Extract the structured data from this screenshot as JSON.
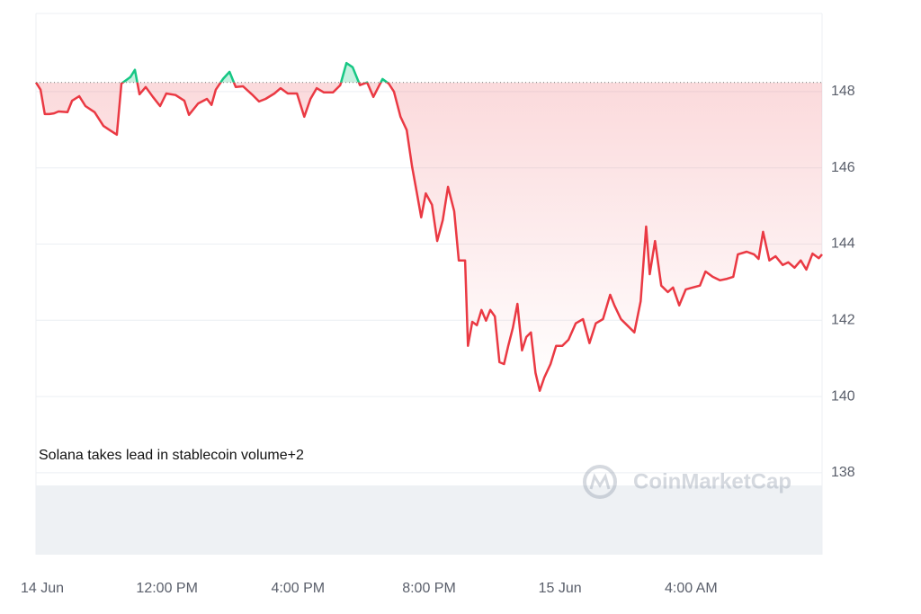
{
  "chart_data": {
    "type": "line",
    "annotation": "Solana takes lead in stablecoin volume+2",
    "watermark": "CoinMarketCap",
    "x": [
      0,
      0.14,
      0.27,
      0.41,
      0.55,
      0.69,
      0.96,
      1.1,
      1.32,
      1.51,
      1.79,
      2.06,
      2.25,
      2.47,
      2.61,
      2.88,
      3.02,
      3.16,
      3.35,
      3.57,
      3.79,
      3.98,
      4.26,
      4.53,
      4.67,
      4.95,
      5.22,
      5.36,
      5.49,
      5.71,
      5.91,
      6.1,
      6.32,
      6.59,
      6.81,
      7.01,
      7.28,
      7.47,
      7.69,
      7.97,
      8.19,
      8.38,
      8.57,
      8.79,
      9.07,
      9.29,
      9.48,
      9.67,
      9.89,
      10.11,
      10.3,
      10.58,
      10.77,
      10.93,
      11.13,
      11.32,
      11.48,
      11.62,
      11.76,
      11.9,
      12.09,
      12.25,
      12.42,
      12.58,
      12.77,
      12.91,
      13.1,
      13.19,
      13.32,
      13.46,
      13.6,
      13.74,
      13.87,
      14.01,
      14.15,
      14.29,
      14.42,
      14.56,
      14.7,
      14.84,
      14.97,
      15.11,
      15.25,
      15.38,
      15.52,
      15.71,
      15.88,
      16.07,
      16.26,
      16.48,
      16.7,
      16.9,
      17.09,
      17.31,
      17.53,
      17.66,
      17.86,
      18.05,
      18.27,
      18.46,
      18.63,
      18.74,
      18.9,
      19.09,
      19.29,
      19.45,
      19.64,
      19.84,
      20.05,
      20.27,
      20.44,
      20.66,
      20.88,
      21.1,
      21.29,
      21.43,
      21.7,
      21.92,
      22.06,
      22.2,
      22.39,
      22.58,
      22.8,
      22.97,
      23.16,
      23.35,
      23.52,
      23.71,
      23.9,
      24
    ],
    "values": [
      148.24,
      148.05,
      147.41,
      147.41,
      147.43,
      147.48,
      147.46,
      147.76,
      147.88,
      147.62,
      147.46,
      147.1,
      146.99,
      146.87,
      148.21,
      148.38,
      148.57,
      147.93,
      148.12,
      147.86,
      147.62,
      147.95,
      147.91,
      147.76,
      147.39,
      147.69,
      147.81,
      147.65,
      148.05,
      148.33,
      148.52,
      148.12,
      148.14,
      147.93,
      147.74,
      147.81,
      147.95,
      148.09,
      147.95,
      147.95,
      147.34,
      147.81,
      148.09,
      147.98,
      147.98,
      148.17,
      148.75,
      148.64,
      148.17,
      148.24,
      147.86,
      148.33,
      148.21,
      148.0,
      147.34,
      146.99,
      146.04,
      145.38,
      144.7,
      145.33,
      145.03,
      144.08,
      144.63,
      145.5,
      144.86,
      143.57,
      143.57,
      141.33,
      141.96,
      141.87,
      142.27,
      141.99,
      142.27,
      142.1,
      140.9,
      140.85,
      141.33,
      141.8,
      142.43,
      141.21,
      141.56,
      141.68,
      140.62,
      140.15,
      140.5,
      140.85,
      141.33,
      141.33,
      141.49,
      141.92,
      142.03,
      141.4,
      141.92,
      142.03,
      142.67,
      142.39,
      142.03,
      141.87,
      141.68,
      142.5,
      144.46,
      143.21,
      144.08,
      142.91,
      142.74,
      142.86,
      142.39,
      142.81,
      142.86,
      142.91,
      143.28,
      143.14,
      143.05,
      143.09,
      143.14,
      143.73,
      143.8,
      143.73,
      143.61,
      144.32,
      143.57,
      143.68,
      143.45,
      143.52,
      143.38,
      143.57,
      143.33,
      143.75,
      143.63,
      143.73
    ],
    "reference": 148.24,
    "colors": {
      "up": "#16c784",
      "down": "#ea3943"
    },
    "xlim": [
      0,
      24
    ],
    "xticks": [
      {
        "value": 0,
        "label": "14 Jun"
      },
      {
        "value": 4,
        "label": "12:00 PM"
      },
      {
        "value": 8,
        "label": "4:00 PM"
      },
      {
        "value": 12,
        "label": "8:00 PM"
      },
      {
        "value": 16,
        "label": "15 Jun"
      },
      {
        "value": 20,
        "label": "4:00 AM"
      }
    ],
    "ylim": [
      135.85,
      150.05
    ],
    "yticks": [
      138,
      140,
      142,
      144,
      146,
      148
    ],
    "grid": true
  }
}
